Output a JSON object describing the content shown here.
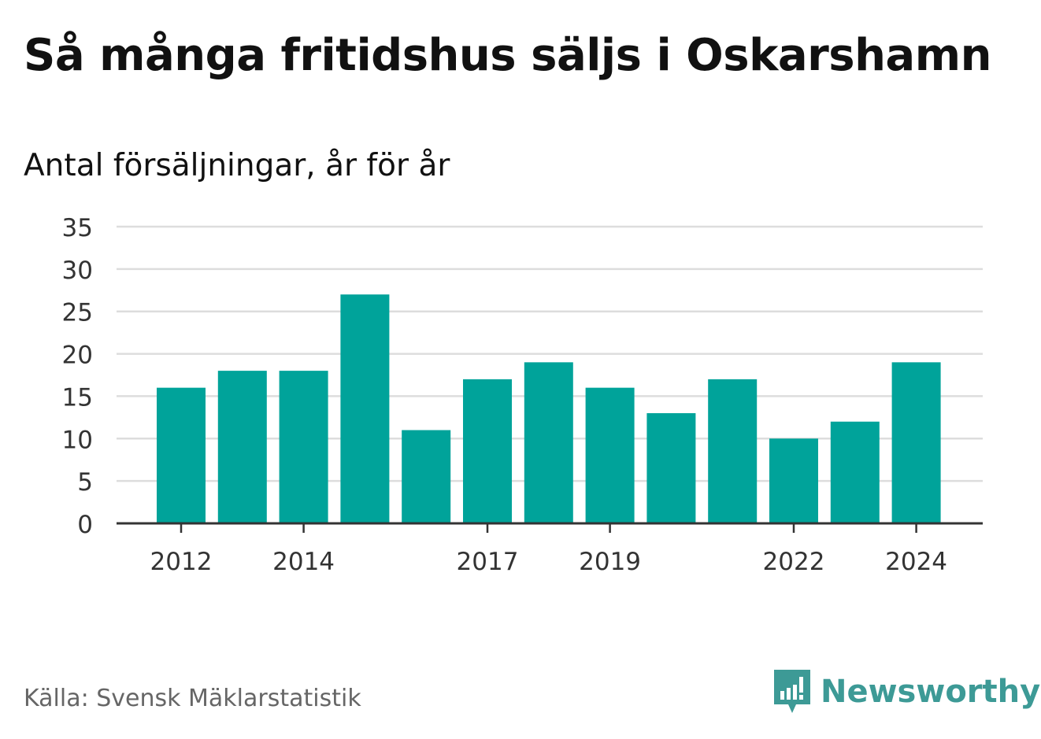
{
  "title": "Så många fritidshus säljs i Oskarshamn",
  "subtitle": "Antal försäljningar, år för år",
  "source": "Källa: Svensk Mäklarstatistik",
  "brand": {
    "name": "Newsworthy",
    "logo_icon": "newsworthy-bar-speech-bubble-icon",
    "color": "#3d9a96"
  },
  "colors": {
    "bar": "#00a39a",
    "grid": "#dddddd",
    "axis": "#333333",
    "tick_text": "#333333"
  },
  "chart_data": {
    "type": "bar",
    "categories": [
      "2012",
      "2013",
      "2014",
      "2015",
      "2016",
      "2017",
      "2018",
      "2019",
      "2020",
      "2021",
      "2022",
      "2023",
      "2024"
    ],
    "values": [
      16,
      18,
      18,
      27,
      11,
      17,
      19,
      16,
      13,
      17,
      10,
      12,
      19
    ],
    "x_tick_labels": [
      "2012",
      "2014",
      "2017",
      "2019",
      "2022",
      "2024"
    ],
    "y_ticks": [
      0,
      5,
      10,
      15,
      20,
      25,
      30,
      35
    ],
    "ylim": [
      0,
      35
    ],
    "grid": true,
    "title": "Så många fritidshus säljs i Oskarshamn",
    "subtitle": "Antal försäljningar, år för år",
    "xlabel": "",
    "ylabel": ""
  }
}
